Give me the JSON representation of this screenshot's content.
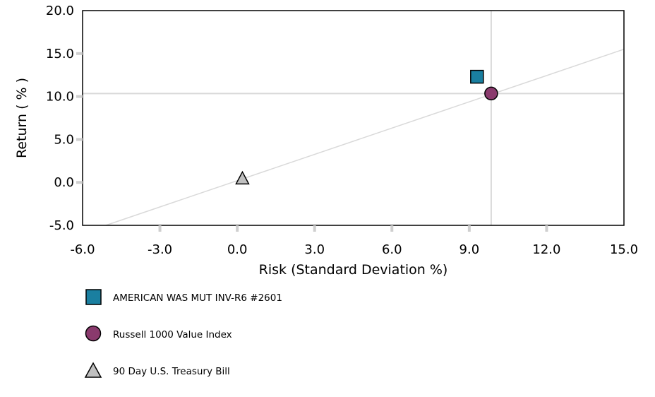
{
  "chart_data": {
    "type": "scatter",
    "xlabel": "Risk (Standard Deviation %)",
    "ylabel": "Return ( % )",
    "xlim": [
      -6.0,
      15.0
    ],
    "ylim": [
      -5.0,
      20.0
    ],
    "x_ticks": [
      "-6.0",
      "-3.0",
      "0.0",
      "3.0",
      "6.0",
      "9.0",
      "12.0",
      "15.0"
    ],
    "y_ticks": [
      "20.0",
      "15.0",
      "10.0",
      "5.0",
      "0.0",
      "-5.0"
    ],
    "grid": false,
    "crosshair": {
      "x": 9.85,
      "y": 10.35
    },
    "capital_market_line": {
      "x": [
        -5.1,
        15.0
      ],
      "y": [
        -5.0,
        15.5
      ]
    },
    "series": [
      {
        "name": "AMERICAN WAS MUT INV-R6 #2601",
        "marker": "square",
        "color": "#1a7fa0",
        "x": 9.3,
        "y": 12.3
      },
      {
        "name": "Russell 1000 Value Index",
        "marker": "circle",
        "color": "#8a3a6d",
        "x": 9.85,
        "y": 10.35
      },
      {
        "name": "90 Day U.S. Treasury Bill",
        "marker": "triangle",
        "color": "#c0c0c0",
        "x": 0.2,
        "y": 0.4
      }
    ],
    "legend_position": "bottom-left"
  }
}
